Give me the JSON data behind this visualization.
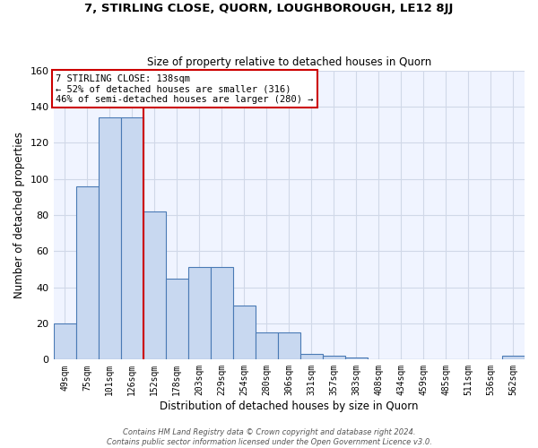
{
  "title": "7, STIRLING CLOSE, QUORN, LOUGHBOROUGH, LE12 8JJ",
  "subtitle": "Size of property relative to detached houses in Quorn",
  "xlabel": "Distribution of detached houses by size in Quorn",
  "ylabel": "Number of detached properties",
  "categories": [
    "49sqm",
    "75sqm",
    "101sqm",
    "126sqm",
    "152sqm",
    "178sqm",
    "203sqm",
    "229sqm",
    "254sqm",
    "280sqm",
    "306sqm",
    "331sqm",
    "357sqm",
    "383sqm",
    "408sqm",
    "434sqm",
    "459sqm",
    "485sqm",
    "511sqm",
    "536sqm",
    "562sqm"
  ],
  "bar_heights": [
    20,
    96,
    134,
    134,
    82,
    45,
    51,
    51,
    30,
    15,
    15,
    3,
    2,
    1,
    0,
    0,
    0,
    0,
    0,
    0,
    2
  ],
  "bar_color": "#c8d8f0",
  "bar_edge_color": "#4a7ab5",
  "red_line_x": 3.5,
  "annotation_text": "7 STIRLING CLOSE: 138sqm\n← 52% of detached houses are smaller (316)\n46% of semi-detached houses are larger (280) →",
  "annotation_box_color": "#ffffff",
  "annotation_box_edge_color": "#cc0000",
  "ylim": [
    0,
    160
  ],
  "yticks": [
    0,
    20,
    40,
    60,
    80,
    100,
    120,
    140,
    160
  ],
  "footer_text": "Contains HM Land Registry data © Crown copyright and database right 2024.\nContains public sector information licensed under the Open Government Licence v3.0.",
  "grid_color": "#d0d8e8",
  "bg_color": "#f0f4ff"
}
